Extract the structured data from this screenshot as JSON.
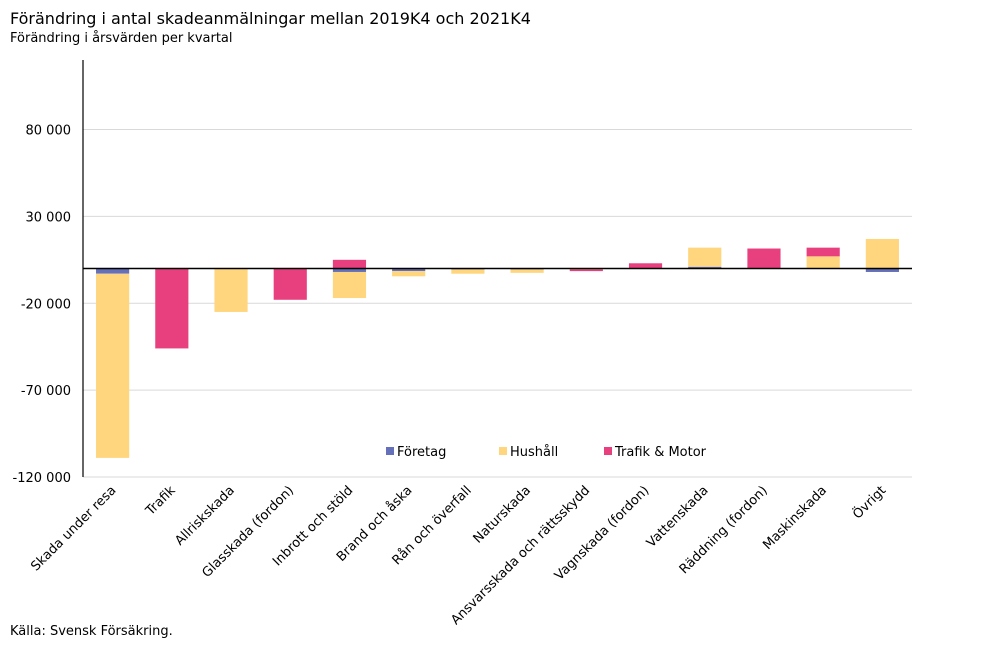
{
  "title": "Förändring i antal skadeanmälningar mellan 2019K4 och 2021K4",
  "subtitle": "Förändring i årsvärden per kvartal",
  "source": "Källa: Svensk Försäkring.",
  "chart_data": {
    "type": "bar",
    "stacked": true,
    "title": "Förändring i antal skadeanmälningar mellan 2019K4 och 2021K4",
    "subtitle": "Förändring i årsvärden per kvartal",
    "xlabel": "",
    "ylabel": "",
    "ylim": [
      -120000,
      120000
    ],
    "yticks": [
      80000,
      30000,
      -20000,
      -70000,
      -120000
    ],
    "ytick_labels": [
      "80 000",
      "30 000",
      "-20 000",
      "-70 000",
      "-120 000"
    ],
    "grid": true,
    "legend_position": "bottom-center-inside",
    "categories": [
      "Skada under resa",
      "Trafik",
      "Allriskskada",
      "Glasskada (fordon)",
      "Inbrott och stöld",
      "Brand och åska",
      "Rån och överfall",
      "Naturskada",
      "Ansvarsskada och rättsskydd",
      "Vagnskada (fordon)",
      "Vattenskada",
      "Räddning (fordon)",
      "Maskinskada",
      "Övrigt"
    ],
    "series": [
      {
        "name": "Företag",
        "color": "#6470b9",
        "values": [
          -3000,
          0,
          0,
          0,
          -2000,
          -1500,
          -500,
          -500,
          0,
          0,
          1000,
          0,
          0,
          -2000
        ]
      },
      {
        "name": "Hushåll",
        "color": "#ffd57e",
        "values": [
          -106000,
          0,
          -25000,
          0,
          -15000,
          -3000,
          -2500,
          -2000,
          -500,
          0,
          11000,
          0,
          7000,
          17000
        ]
      },
      {
        "name": "Trafik & Motor",
        "color": "#e8407f",
        "values": [
          0,
          -46000,
          0,
          -18000,
          5000,
          0,
          0,
          0,
          -1000,
          3000,
          0,
          11500,
          5000,
          0
        ]
      }
    ]
  }
}
